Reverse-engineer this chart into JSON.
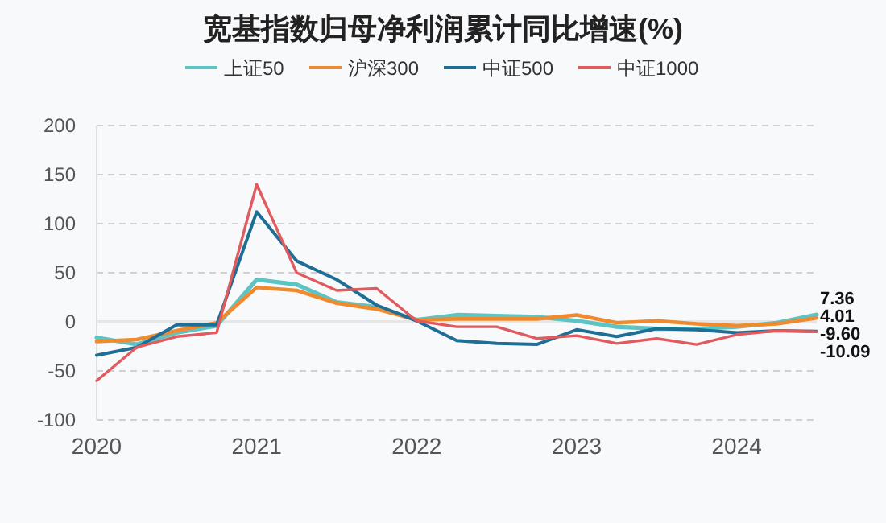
{
  "chart_data": {
    "type": "line",
    "title": "宽基指数归母净利润累计同比增速(%)",
    "x": [
      "2020-01",
      "2020-04",
      "2020-07",
      "2020-10",
      "2021-01",
      "2021-04",
      "2021-07",
      "2021-10",
      "2022-01",
      "2022-04",
      "2022-07",
      "2022-10",
      "2023-01",
      "2023-04",
      "2023-07",
      "2023-10",
      "2024-01",
      "2024-04",
      "2024-07"
    ],
    "series": [
      {
        "name": "上证50",
        "color": "#5cc4c4",
        "values": [
          -16,
          -23,
          -11,
          -4,
          43,
          38,
          20,
          15,
          2,
          7,
          6,
          5,
          1,
          -5,
          -7,
          -7,
          -5,
          -1,
          7.36
        ],
        "value_labels": [
          null,
          null,
          null,
          null,
          null,
          null,
          null,
          null,
          null,
          null,
          null,
          null,
          null,
          null,
          null,
          null,
          null,
          null,
          "7.36"
        ]
      },
      {
        "name": "沪深300",
        "color": "#f08a2e",
        "values": [
          -20,
          -18,
          -9,
          -1,
          35,
          32,
          19,
          13,
          2,
          3,
          3,
          3,
          7,
          -1,
          1,
          -2,
          -4,
          -2,
          4.01
        ],
        "value_labels": [
          null,
          null,
          null,
          null,
          null,
          null,
          null,
          null,
          null,
          null,
          null,
          null,
          null,
          null,
          null,
          null,
          null,
          null,
          "4.01"
        ]
      },
      {
        "name": "中证500",
        "color": "#1f6e96",
        "values": [
          -34,
          -26,
          -3,
          -3,
          112,
          62,
          43,
          17,
          1,
          -19,
          -22,
          -23,
          -8,
          -15,
          -7,
          -8,
          -11,
          -9,
          -9.6
        ],
        "value_labels": [
          null,
          null,
          null,
          null,
          null,
          null,
          null,
          null,
          null,
          null,
          null,
          null,
          null,
          null,
          null,
          null,
          null,
          null,
          "-9.60"
        ]
      },
      {
        "name": "中证1000",
        "color": "#e05a5e",
        "values": [
          -60,
          -26,
          -15,
          -11,
          140,
          50,
          32,
          34,
          1,
          -5,
          -5,
          -17,
          -14,
          -22,
          -17,
          -23,
          -13,
          -9,
          -10.09
        ],
        "value_labels": [
          null,
          null,
          null,
          null,
          null,
          null,
          null,
          null,
          null,
          null,
          null,
          null,
          null,
          null,
          null,
          null,
          null,
          null,
          "-10.09"
        ]
      }
    ],
    "xlim": [
      "2020-01",
      "2024-07"
    ],
    "xticks": [
      "2020",
      "2021",
      "2022",
      "2023",
      "2024"
    ],
    "ylim": [
      -100,
      200
    ],
    "yticks": [
      -100,
      -50,
      0,
      50,
      100,
      150,
      200
    ],
    "grid": "y",
    "legend": "top",
    "marker": "none",
    "line_style": "solid"
  }
}
